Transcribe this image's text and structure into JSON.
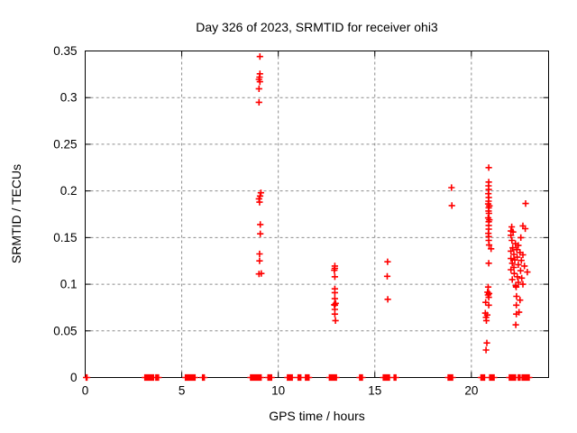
{
  "chart_data": {
    "type": "scatter",
    "title": "Day 326 of 2023, SRMTID for receiver ohi3",
    "xlabel": "GPS time / hours",
    "ylabel": "SRMTID / TECUs",
    "xlim": [
      0,
      24
    ],
    "ylim": [
      0,
      0.35
    ],
    "grid": true,
    "legend": "none",
    "marker": "plus",
    "marker_color": "#ff0000",
    "grid_color": "#8c8c8c",
    "border_color": "#000000",
    "x_ticks": [
      {
        "value": 0,
        "label": "0"
      },
      {
        "value": 5,
        "label": "5"
      },
      {
        "value": 10,
        "label": "10"
      },
      {
        "value": 15,
        "label": "15"
      },
      {
        "value": 20,
        "label": "20"
      }
    ],
    "y_ticks": [
      {
        "value": 0.0,
        "label": "0"
      },
      {
        "value": 0.05,
        "label": "0.05"
      },
      {
        "value": 0.1,
        "label": "0.1"
      },
      {
        "value": 0.15,
        "label": "0.15"
      },
      {
        "value": 0.2,
        "label": "0.2"
      },
      {
        "value": 0.25,
        "label": "0.25"
      },
      {
        "value": 0.3,
        "label": "0.3"
      },
      {
        "value": 0.35,
        "label": "0.35"
      }
    ],
    "points": [
      [
        9.05,
        0.344
      ],
      [
        9.05,
        0.3255
      ],
      [
        9.03,
        0.322
      ],
      [
        9.0,
        0.3195
      ],
      [
        9.05,
        0.317
      ],
      [
        9.0,
        0.3095
      ],
      [
        9.0,
        0.295
      ],
      [
        9.1,
        0.198
      ],
      [
        9.06,
        0.1945
      ],
      [
        9.0,
        0.1915
      ],
      [
        9.03,
        0.188
      ],
      [
        9.07,
        0.164
      ],
      [
        9.07,
        0.154
      ],
      [
        9.03,
        0.1325
      ],
      [
        9.03,
        0.125
      ],
      [
        9.0,
        0.111
      ],
      [
        9.12,
        0.1115
      ],
      [
        12.93,
        0.1195
      ],
      [
        12.93,
        0.117
      ],
      [
        12.9,
        0.115
      ],
      [
        12.93,
        0.108
      ],
      [
        12.93,
        0.095
      ],
      [
        12.93,
        0.091
      ],
      [
        12.93,
        0.0845
      ],
      [
        12.97,
        0.0795
      ],
      [
        12.9,
        0.078
      ],
      [
        12.93,
        0.0775
      ],
      [
        12.93,
        0.073
      ],
      [
        12.93,
        0.068
      ],
      [
        12.96,
        0.061
      ],
      [
        15.66,
        0.124
      ],
      [
        15.64,
        0.1085
      ],
      [
        15.67,
        0.0838
      ],
      [
        18.97,
        0.2035
      ],
      [
        18.99,
        0.1843
      ],
      [
        20.9,
        0.225
      ],
      [
        20.9,
        0.2095
      ],
      [
        20.89,
        0.2055
      ],
      [
        20.9,
        0.2015
      ],
      [
        20.88,
        0.197
      ],
      [
        20.9,
        0.193
      ],
      [
        20.89,
        0.189
      ],
      [
        20.87,
        0.186
      ],
      [
        20.93,
        0.184
      ],
      [
        20.9,
        0.182
      ],
      [
        20.89,
        0.1785
      ],
      [
        20.91,
        0.176
      ],
      [
        20.87,
        0.171
      ],
      [
        20.93,
        0.169
      ],
      [
        20.9,
        0.167
      ],
      [
        20.9,
        0.163
      ],
      [
        20.9,
        0.159
      ],
      [
        20.88,
        0.1545
      ],
      [
        20.9,
        0.151
      ],
      [
        20.9,
        0.147
      ],
      [
        20.92,
        0.142
      ],
      [
        21.02,
        0.138
      ],
      [
        20.9,
        0.1225
      ],
      [
        20.87,
        0.097
      ],
      [
        20.84,
        0.0915
      ],
      [
        20.92,
        0.09
      ],
      [
        20.86,
        0.0885
      ],
      [
        20.9,
        0.086
      ],
      [
        20.74,
        0.0805
      ],
      [
        20.9,
        0.0775
      ],
      [
        20.72,
        0.069
      ],
      [
        20.82,
        0.067
      ],
      [
        20.76,
        0.0645
      ],
      [
        20.78,
        0.061
      ],
      [
        20.8,
        0.037
      ],
      [
        20.76,
        0.0295
      ],
      [
        22.09,
        0.1615
      ],
      [
        22.67,
        0.1625
      ],
      [
        22.79,
        0.1595
      ],
      [
        22.05,
        0.157
      ],
      [
        22.16,
        0.156
      ],
      [
        22.05,
        0.1525
      ],
      [
        22.56,
        0.15
      ],
      [
        22.1,
        0.147
      ],
      [
        22.28,
        0.1435
      ],
      [
        22.43,
        0.1415
      ],
      [
        22.14,
        0.139
      ],
      [
        22.35,
        0.137
      ],
      [
        22.05,
        0.1355
      ],
      [
        22.52,
        0.134
      ],
      [
        22.2,
        0.132
      ],
      [
        22.67,
        0.1315
      ],
      [
        22.37,
        0.129
      ],
      [
        22.05,
        0.1275
      ],
      [
        22.25,
        0.126
      ],
      [
        22.59,
        0.1255
      ],
      [
        22.12,
        0.1225
      ],
      [
        22.43,
        0.121
      ],
      [
        22.75,
        0.1195
      ],
      [
        22.2,
        0.118
      ],
      [
        22.05,
        0.1155
      ],
      [
        22.55,
        0.1145
      ],
      [
        22.9,
        0.113
      ],
      [
        22.22,
        0.1115
      ],
      [
        22.38,
        0.108
      ],
      [
        22.61,
        0.1065
      ],
      [
        22.12,
        0.105
      ],
      [
        22.43,
        0.102
      ],
      [
        22.67,
        0.1
      ],
      [
        22.3,
        0.0985
      ],
      [
        22.32,
        0.097
      ],
      [
        22.34,
        0.087
      ],
      [
        22.52,
        0.083
      ],
      [
        22.33,
        0.0775
      ],
      [
        22.47,
        0.07
      ],
      [
        22.33,
        0.068
      ],
      [
        22.3,
        0.0565
      ],
      [
        22.81,
        0.1865
      ]
    ],
    "zero_segments": [
      [
        0.05,
        0.1
      ],
      [
        3.09,
        3.55
      ],
      [
        3.66,
        3.82
      ],
      [
        5.19,
        5.69
      ],
      [
        6.08,
        6.2
      ],
      [
        8.57,
        9.12
      ],
      [
        9.47,
        9.66
      ],
      [
        10.48,
        10.58
      ],
      [
        10.63,
        10.72
      ],
      [
        11.03,
        11.17
      ],
      [
        11.41,
        11.6
      ],
      [
        12.65,
        13.05
      ],
      [
        14.22,
        14.38
      ],
      [
        15.44,
        15.76
      ],
      [
        16.0,
        16.13
      ],
      [
        18.8,
        19.03
      ],
      [
        20.5,
        20.72
      ],
      [
        20.95,
        21.2
      ],
      [
        21.97,
        22.29
      ],
      [
        22.43,
        22.55
      ],
      [
        22.63,
        23.0
      ]
    ]
  }
}
